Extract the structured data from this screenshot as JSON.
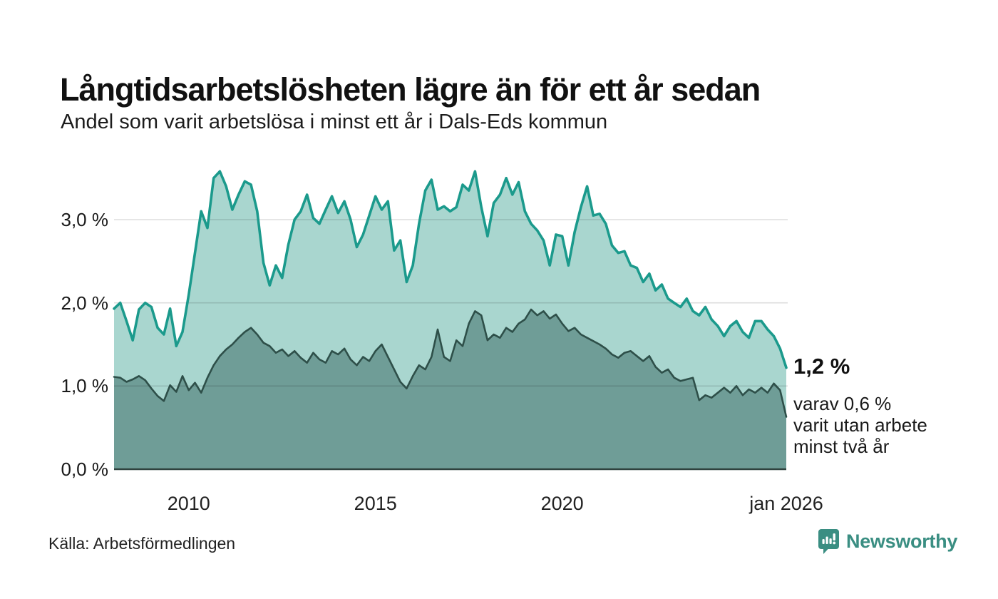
{
  "header": {
    "title": "Långtidsarbetslösheten lägre än för ett år sedan",
    "subtitle": "Andel som varit arbetslösa i minst ett år i Dals-Eds kommun"
  },
  "chart_data": {
    "type": "area",
    "title": "Långtidsarbetslösheten lägre än för ett år sedan",
    "subtitle": "Andel som varit arbetslösa i minst ett år i Dals-Eds kommun",
    "unit": "%",
    "x_start_year": 2008,
    "x_step_months": 2,
    "x_range_years": [
      2008,
      2026.0
    ],
    "ylim": [
      0,
      3.7
    ],
    "grid": "horizontal",
    "y_ticks": [
      {
        "label": "0,0 %",
        "value": 0
      },
      {
        "label": "1,0 %",
        "value": 1
      },
      {
        "label": "2,0 %",
        "value": 2
      },
      {
        "label": "3,0 %",
        "value": 3
      }
    ],
    "x_ticks": [
      {
        "label": "2010",
        "t": 2010
      },
      {
        "label": "2015",
        "t": 2015
      },
      {
        "label": "2020",
        "t": 2020
      },
      {
        "label": "jan 2026",
        "t": 2026.0
      }
    ],
    "colors": {
      "total_line": "#1b9a8c",
      "total_fill": "#a9d6cf",
      "two_year_line": "#2e4f49",
      "two_year_fill": "#6f9d97",
      "gridline": "rgba(0,0,0,0.13)",
      "baseline": "#2f423e"
    },
    "series": [
      {
        "name": "Andel arbetslösa minst ett år",
        "end_value_label": "1,2 %",
        "values": [
          1.93,
          2.0,
          1.78,
          1.55,
          1.92,
          2.0,
          1.95,
          1.7,
          1.62,
          1.93,
          1.48,
          1.65,
          2.1,
          2.6,
          3.1,
          2.9,
          3.5,
          3.58,
          3.4,
          3.12,
          3.3,
          3.46,
          3.42,
          3.1,
          2.48,
          2.21,
          2.45,
          2.3,
          2.7,
          3.0,
          3.1,
          3.3,
          3.02,
          2.95,
          3.12,
          3.28,
          3.08,
          3.22,
          3.0,
          2.67,
          2.82,
          3.05,
          3.28,
          3.12,
          3.22,
          2.63,
          2.75,
          2.25,
          2.45,
          2.95,
          3.35,
          3.48,
          3.12,
          3.16,
          3.1,
          3.15,
          3.42,
          3.35,
          3.58,
          3.15,
          2.8,
          3.2,
          3.3,
          3.5,
          3.3,
          3.45,
          3.1,
          2.95,
          2.87,
          2.75,
          2.45,
          2.82,
          2.8,
          2.45,
          2.85,
          3.15,
          3.4,
          3.05,
          3.07,
          2.95,
          2.69,
          2.6,
          2.62,
          2.45,
          2.42,
          2.25,
          2.35,
          2.15,
          2.22,
          2.05,
          2.0,
          1.95,
          2.05,
          1.9,
          1.85,
          1.95,
          1.8,
          1.72,
          1.6,
          1.72,
          1.78,
          1.65,
          1.58,
          1.78,
          1.78,
          1.68,
          1.6,
          1.45,
          1.22
        ]
      },
      {
        "name": "Andel arbetslösa minst två år",
        "end_value_label": "0,6 %",
        "values": [
          1.11,
          1.1,
          1.05,
          1.08,
          1.12,
          1.07,
          0.97,
          0.88,
          0.82,
          1.01,
          0.93,
          1.12,
          0.95,
          1.04,
          0.92,
          1.1,
          1.25,
          1.36,
          1.44,
          1.5,
          1.58,
          1.65,
          1.7,
          1.62,
          1.52,
          1.48,
          1.4,
          1.44,
          1.36,
          1.42,
          1.34,
          1.28,
          1.4,
          1.32,
          1.28,
          1.42,
          1.38,
          1.45,
          1.32,
          1.25,
          1.35,
          1.3,
          1.42,
          1.5,
          1.35,
          1.2,
          1.05,
          0.97,
          1.12,
          1.25,
          1.2,
          1.35,
          1.68,
          1.35,
          1.3,
          1.55,
          1.48,
          1.75,
          1.9,
          1.85,
          1.55,
          1.62,
          1.58,
          1.7,
          1.65,
          1.75,
          1.8,
          1.92,
          1.85,
          1.9,
          1.81,
          1.86,
          1.75,
          1.66,
          1.7,
          1.62,
          1.58,
          1.54,
          1.5,
          1.45,
          1.38,
          1.34,
          1.4,
          1.42,
          1.36,
          1.3,
          1.36,
          1.23,
          1.16,
          1.2,
          1.1,
          1.06,
          1.08,
          1.1,
          0.83,
          0.89,
          0.86,
          0.92,
          0.98,
          0.92,
          1.0,
          0.89,
          0.96,
          0.92,
          0.98,
          0.92,
          1.03,
          0.95,
          0.63
        ]
      }
    ]
  },
  "annotation": {
    "value_label": "1,2 %",
    "detail_text": "varav 0,6 %\nvarit utan arbete\nminst två år"
  },
  "footer": {
    "source": "Källa: Arbetsförmedlingen",
    "brand": "Newsworthy",
    "brand_color": "#3a8e82"
  }
}
